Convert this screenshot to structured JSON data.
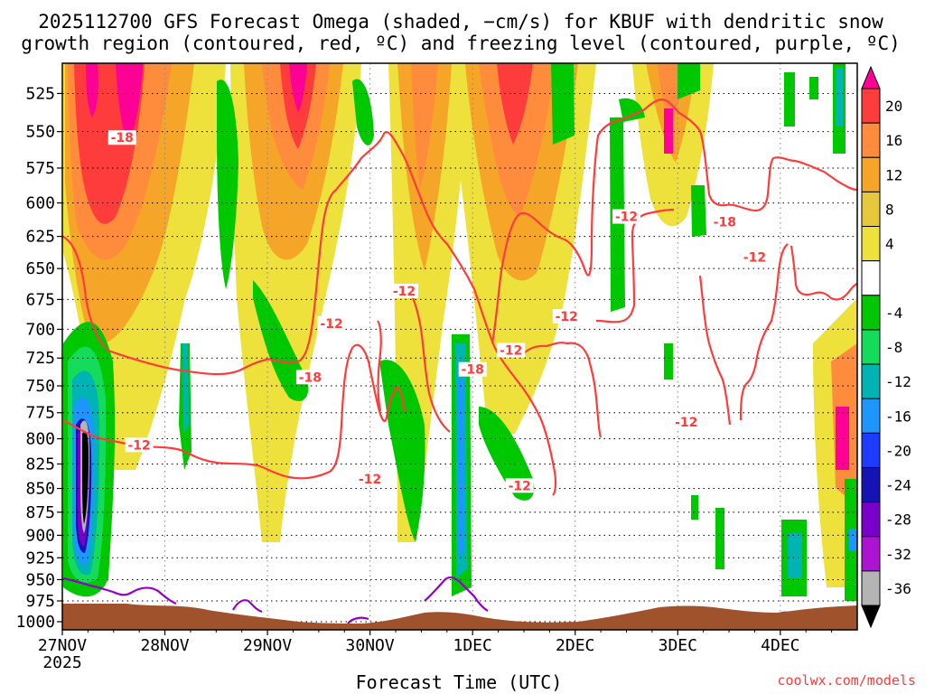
{
  "chart_data": {
    "type": "heatmap",
    "title_line1": "2025112700 GFS Forecast Omega (shaded, −cm/s) for KBUF with dendritic snow",
    "title_line2": "growth region (contoured, red, ºC) and freezing level (contoured, purple, ºC)",
    "xlabel": "Forecast Time (UTC)",
    "ylabel": "",
    "credit": "coolwx.com/models",
    "x_ticks": [
      "27NOV",
      "28NOV",
      "29NOV",
      "30NOV",
      "1DEC",
      "2DEC",
      "3DEC",
      "4DEC"
    ],
    "x_tick_sub": "2025",
    "xlim_hours": [
      0,
      186
    ],
    "y_ticks": [
      525,
      550,
      575,
      600,
      625,
      650,
      675,
      700,
      725,
      750,
      775,
      800,
      825,
      850,
      875,
      900,
      925,
      950,
      975,
      1000
    ],
    "ylim": [
      1010,
      506
    ],
    "y_scale": "log",
    "grid": true,
    "colorbar": {
      "labels": [
        20,
        16,
        12,
        8,
        4,
        -4,
        -8,
        -12,
        -16,
        -20,
        -24,
        -28,
        -32,
        -36
      ],
      "colors": [
        "#ff0096",
        "#ff3c3c",
        "#ff8c3c",
        "#f5a528",
        "#e6c83c",
        "#eee13c",
        "#ffffff",
        "#00c800",
        "#14dc5a",
        "#00b4b4",
        "#1e96ff",
        "#1e3cff",
        "#1414b4",
        "#7800c8",
        "#aa14d2",
        "#b4b4b4",
        "#000000"
      ]
    },
    "series": [
      {
        "name": "dendritic snow growth region (contoured, red, ºC)",
        "color": "#ff3c3c",
        "labels": [
          {
            "text": "-18",
            "t": 14,
            "p": 554
          },
          {
            "text": "-18",
            "t": 58,
            "p": 742
          },
          {
            "text": "-12",
            "t": 18,
            "p": 806
          },
          {
            "text": "-12",
            "t": 72,
            "p": 840
          },
          {
            "text": "-12",
            "t": 63,
            "p": 695
          },
          {
            "text": "-12",
            "t": 80,
            "p": 668
          },
          {
            "text": "-18",
            "t": 96,
            "p": 735
          },
          {
            "text": "-12",
            "t": 107,
            "p": 847
          },
          {
            "text": "-12",
            "t": 105,
            "p": 718
          },
          {
            "text": "-12",
            "t": 118,
            "p": 689
          },
          {
            "text": "-12",
            "t": 132,
            "p": 610
          },
          {
            "text": "-18",
            "t": 155,
            "p": 614
          },
          {
            "text": "-12",
            "t": 162,
            "p": 641
          },
          {
            "text": "-12",
            "t": 146,
            "p": 784
          }
        ]
      },
      {
        "name": "freezing level (contoured, purple, ºC)",
        "color": "#9600c8"
      }
    ]
  }
}
